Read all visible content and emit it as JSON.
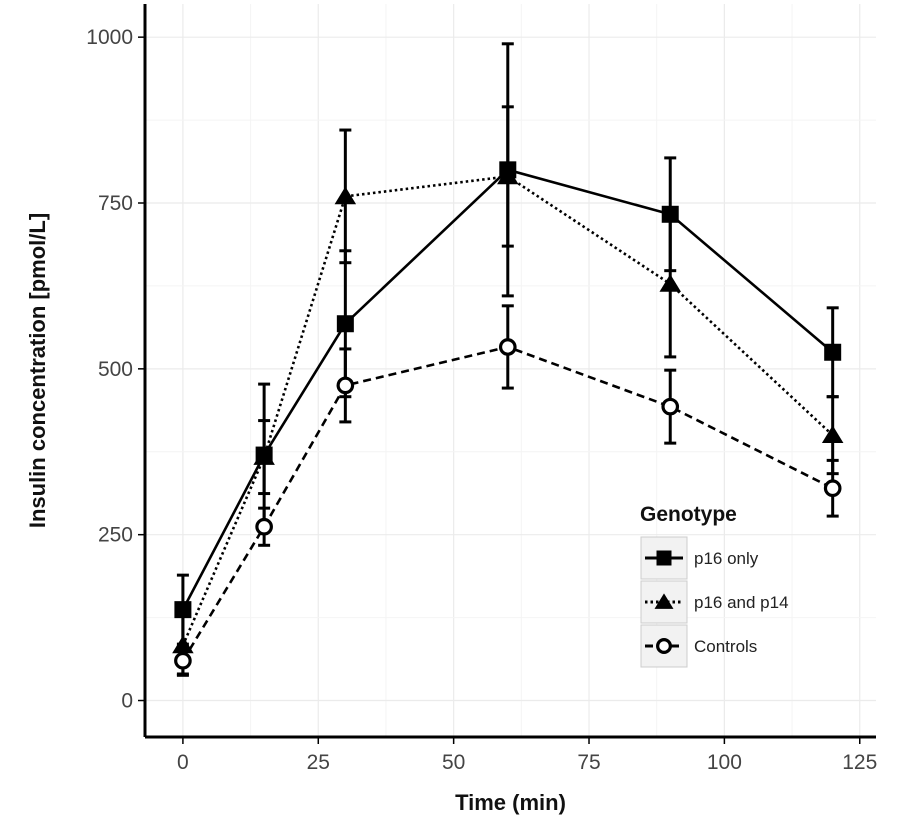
{
  "chart_data": {
    "type": "line",
    "title": "",
    "xlabel": "Time (min)",
    "ylabel": "Insulin concentration [pmol/L]",
    "xlim": [
      -7,
      128
    ],
    "ylim": [
      -55,
      1050
    ],
    "xticks": [
      0,
      25,
      50,
      75,
      100,
      125
    ],
    "yticks": [
      0,
      250,
      500,
      750,
      1000
    ],
    "grid": true,
    "legend_title": "Genotype",
    "legend_position": "bottom-right",
    "x": [
      0,
      15,
      30,
      60,
      90,
      120
    ],
    "series": [
      {
        "name": "p16 only",
        "marker": "square",
        "line_style": "solid",
        "color": "#000000",
        "values": [
          137,
          370,
          568,
          800,
          733,
          525
        ],
        "error": [
          52,
          107,
          110,
          190,
          85,
          67
        ]
      },
      {
        "name": "p16 and p14",
        "marker": "triangle",
        "line_style": "dotted",
        "color": "#000000",
        "values": [
          83,
          367,
          760,
          790,
          628,
          400
        ],
        "error": [
          45,
          55,
          100,
          105,
          110,
          58
        ]
      },
      {
        "name": "Controls",
        "marker": "circle-open",
        "line_style": "dashed",
        "color": "#000000",
        "values": [
          60,
          262,
          475,
          533,
          443,
          320
        ],
        "error": [
          20,
          28,
          55,
          62,
          55,
          42
        ]
      }
    ]
  }
}
